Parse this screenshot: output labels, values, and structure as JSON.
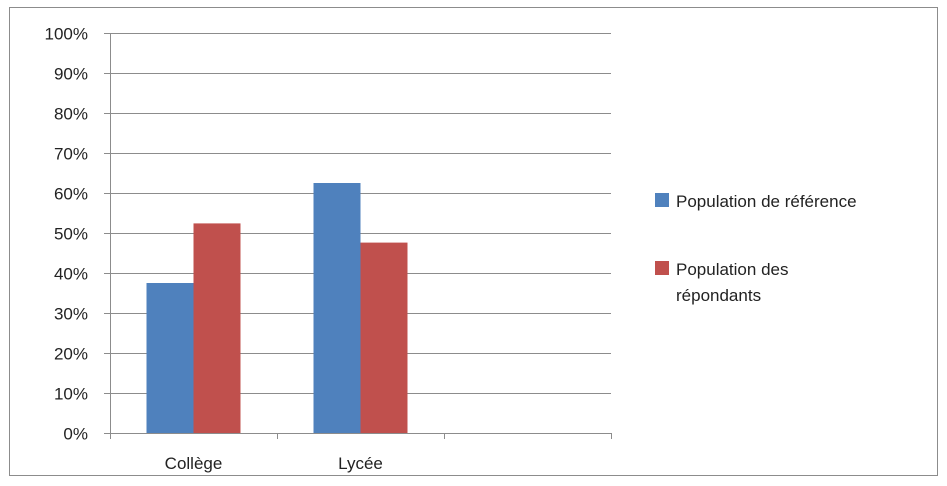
{
  "chart_data": {
    "type": "bar",
    "categories": [
      "Collège",
      "Lycée",
      ""
    ],
    "series": [
      {
        "name": "Population de référence",
        "color": "#4F81BD",
        "values": [
          37.5,
          62.5,
          null
        ]
      },
      {
        "name": "Population des répondants",
        "color": "#C0504D",
        "values": [
          52.4,
          47.6,
          null
        ]
      }
    ],
    "ylim": [
      0,
      100
    ],
    "y_ticks": [
      "0%",
      "10%",
      "20%",
      "30%",
      "40%",
      "50%",
      "60%",
      "70%",
      "80%",
      "90%",
      "100%"
    ],
    "grid": true,
    "legend_position": "right",
    "title": "",
    "xlabel": "",
    "ylabel": ""
  }
}
